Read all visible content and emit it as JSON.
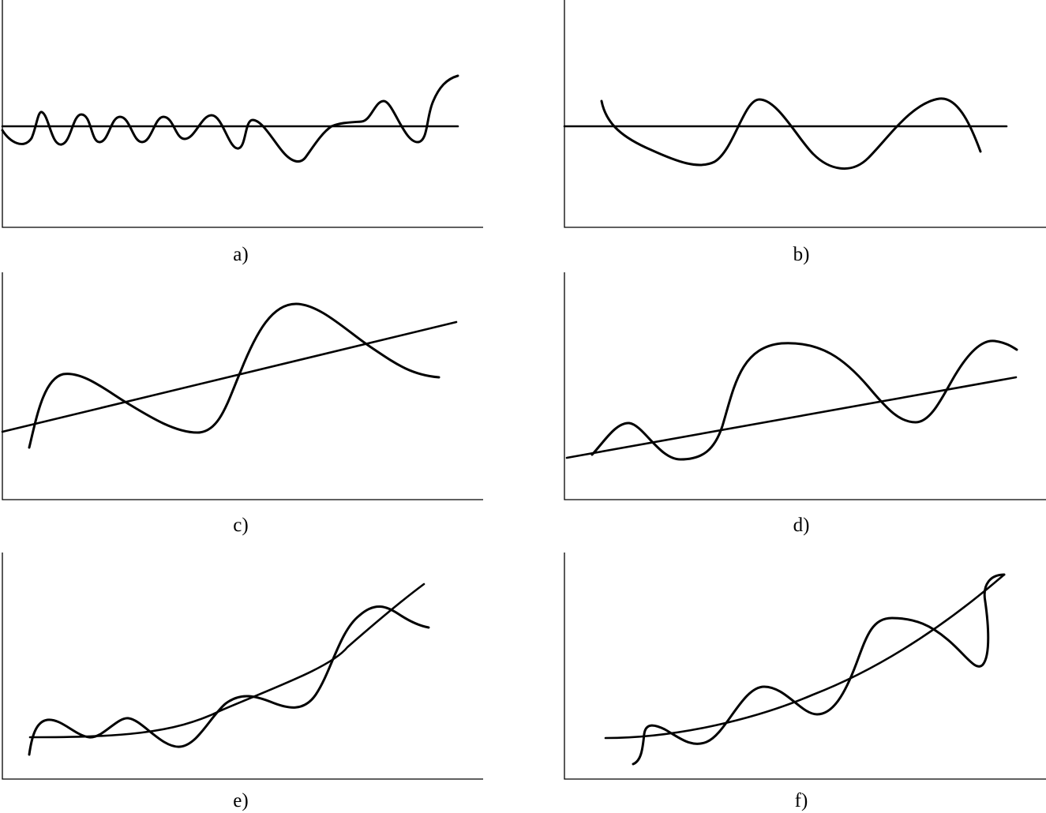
{
  "panels": [
    {
      "id": "a",
      "caption": "a)",
      "trend": "horizontal"
    },
    {
      "id": "b",
      "caption": "b)",
      "trend": "horizontal"
    },
    {
      "id": "c",
      "caption": "c)",
      "trend": "linear increasing"
    },
    {
      "id": "d",
      "caption": "d)",
      "trend": "linear increasing"
    },
    {
      "id": "e",
      "caption": "e)",
      "trend": "exponential increasing"
    },
    {
      "id": "f",
      "caption": "f)",
      "trend": "exponential increasing"
    }
  ]
}
